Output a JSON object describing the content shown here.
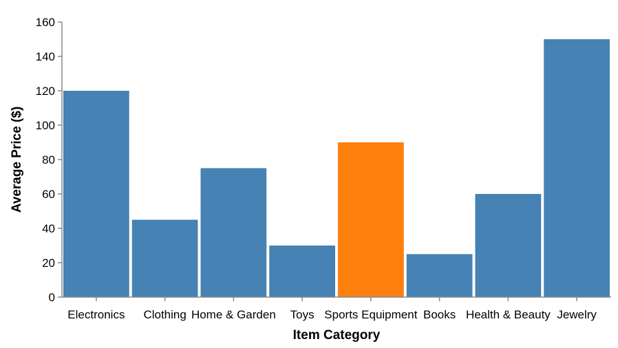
{
  "chart_data": {
    "type": "bar",
    "xlabel": "Item Category",
    "ylabel": "Average Price ($)",
    "ylim": [
      0,
      160
    ],
    "yticks": [
      0,
      20,
      40,
      60,
      80,
      100,
      120,
      140,
      160
    ],
    "grid": false,
    "categories": [
      "Electronics",
      "Clothing",
      "Home & Garden",
      "Toys",
      "Sports Equipment",
      "Books",
      "Health & Beauty",
      "Jewelry"
    ],
    "values": [
      120,
      45,
      75,
      30,
      90,
      25,
      60,
      150
    ],
    "colors": {
      "default": "#4682b4",
      "highlight": "#ff7f0e"
    },
    "highlighted_category": "Sports Equipment"
  }
}
